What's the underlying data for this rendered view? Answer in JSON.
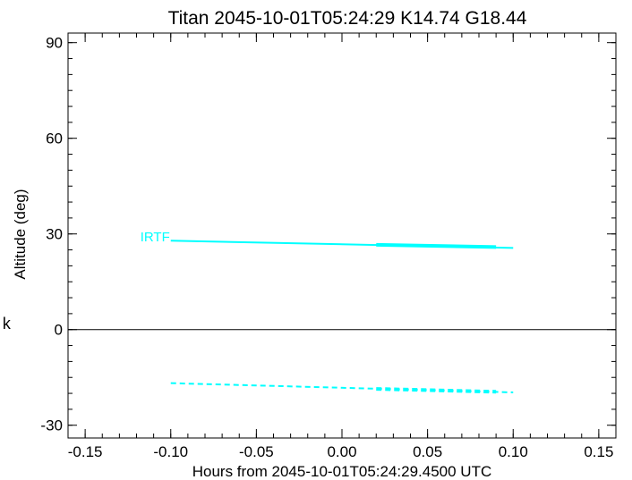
{
  "chart_data": {
    "type": "line",
    "title": "Titan 2045-10-01T05:24:29  K14.74  G18.44",
    "xlabel": "Hours from 2045-10-01T05:24:29.4500 UTC",
    "ylabel": "Altitude (deg)",
    "xlim": [
      -0.16,
      0.16
    ],
    "ylim": [
      -34,
      93
    ],
    "xticks": [
      -0.15,
      -0.1,
      -0.05,
      0.0,
      0.05,
      0.1,
      0.15
    ],
    "xtick_labels": [
      "-0.15",
      "-0.10",
      "-0.05",
      "0.00",
      "0.05",
      "0.10",
      "0.15"
    ],
    "yticks": [
      -30,
      0,
      30,
      60,
      90
    ],
    "ytick_labels": [
      "-30",
      "0",
      "30",
      "60",
      "90"
    ],
    "x_minor_step": 0.01,
    "y_minor_step": 5,
    "zero_line": 0,
    "grid": false,
    "color": "#00ffff",
    "series": [
      {
        "name": "IRTF",
        "style": "solid",
        "x": [
          -0.1,
          0.1
        ],
        "y": [
          27.9,
          25.6
        ],
        "highlight": {
          "x": [
            0.02,
            0.09
          ],
          "y": [
            26.6,
            25.9
          ]
        }
      },
      {
        "style": "dashed",
        "x": [
          -0.1,
          0.1
        ],
        "y": [
          -16.8,
          -19.7
        ],
        "highlight": {
          "x": [
            0.02,
            0.09
          ],
          "y": [
            -18.6,
            -19.5
          ]
        }
      }
    ]
  },
  "side_mark": "k"
}
